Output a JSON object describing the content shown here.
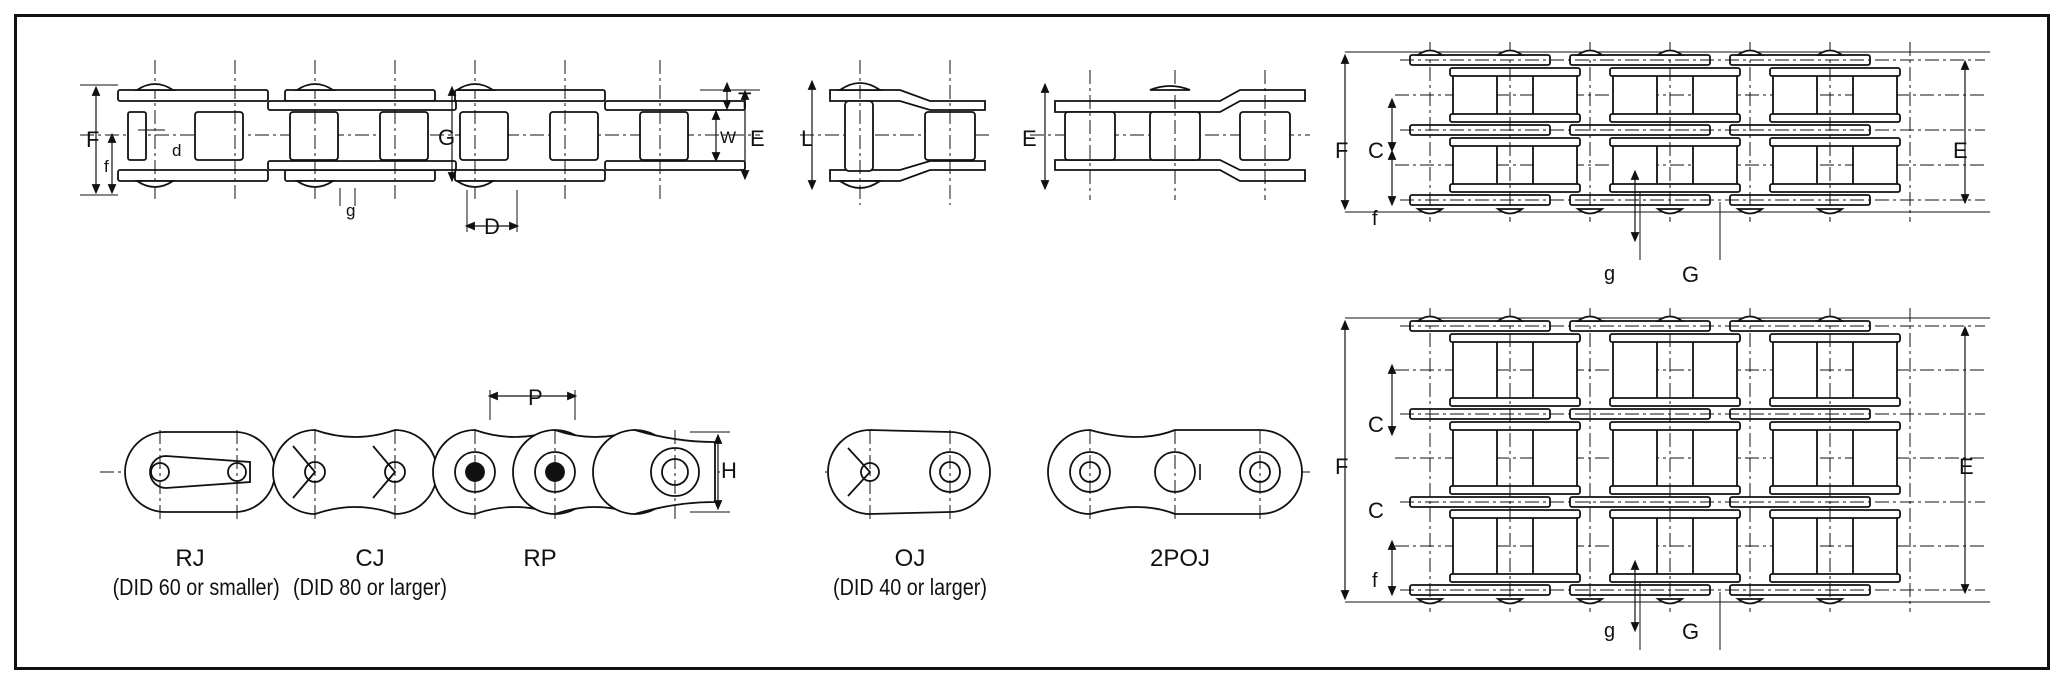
{
  "dimension_labels": {
    "T": "T",
    "W": "W",
    "E": "E",
    "F": "F",
    "f": "f",
    "d": "d",
    "G": "G",
    "g": "g",
    "D": "D",
    "L": "L",
    "C": "C",
    "P": "P",
    "H": "H"
  },
  "captions": {
    "rj": {
      "title": "RJ",
      "sub": "(DID 60 or smaller)"
    },
    "cj": {
      "title": "CJ",
      "sub": "(DID 80 or larger)"
    },
    "rp": {
      "title": "RP"
    },
    "oj": {
      "title": "OJ",
      "sub": "(DID 40 or larger)"
    },
    "poj": {
      "title": "2POJ"
    }
  },
  "colors": {
    "line": "#111111",
    "background": "#ffffff"
  }
}
